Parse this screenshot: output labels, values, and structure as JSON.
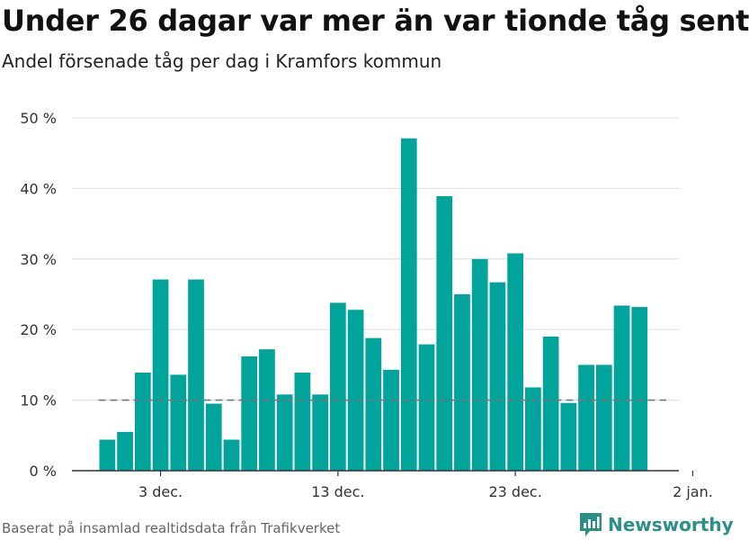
{
  "title": "Under 26 dagar var mer än var tionde tåg sent",
  "subtitle": "Andel försenade tåg per dag i Kramfors kommun",
  "footer": "Baserat på insamlad realtidsdata från Trafikverket",
  "brand": {
    "name": "Newsworthy",
    "icon": "bar-chart-logo-icon"
  },
  "colors": {
    "bar": "#00a49a",
    "reference": "#777777",
    "grid": "#dddddd",
    "brand": "#2a8f86"
  },
  "chart_data": {
    "type": "bar",
    "x": [
      "2019-11-30",
      "2019-12-01",
      "2019-12-02",
      "2019-12-03",
      "2019-12-04",
      "2019-12-05",
      "2019-12-06",
      "2019-12-07",
      "2019-12-08",
      "2019-12-09",
      "2019-12-10",
      "2019-12-11",
      "2019-12-12",
      "2019-12-13",
      "2019-12-14",
      "2019-12-15",
      "2019-12-16",
      "2019-12-17",
      "2019-12-18",
      "2019-12-19",
      "2019-12-20",
      "2019-12-21",
      "2019-12-22",
      "2019-12-23",
      "2019-12-24",
      "2019-12-25",
      "2019-12-26",
      "2019-12-27",
      "2019-12-28",
      "2019-12-29",
      "2019-12-30",
      "2019-12-31"
    ],
    "values": [
      4.4,
      5.5,
      13.9,
      27.1,
      13.6,
      27.1,
      9.5,
      4.4,
      16.2,
      17.2,
      10.8,
      13.9,
      10.8,
      23.8,
      22.8,
      18.8,
      14.3,
      47.1,
      17.9,
      38.9,
      25.0,
      30.0,
      26.7,
      30.8,
      11.8,
      19.0,
      9.6,
      15.0,
      15.0,
      23.4,
      23.2,
      null
    ],
    "reference_line": 10,
    "ylim": [
      0,
      50
    ],
    "yticks": [
      0,
      10,
      20,
      30,
      40,
      50
    ],
    "ytick_labels": [
      "0 %",
      "10 %",
      "20 %",
      "30 %",
      "40 %",
      "50 %"
    ],
    "xticks": [
      "2019-12-03",
      "2019-12-13",
      "2019-12-23",
      "2020-01-02"
    ],
    "xtick_labels": [
      "3 dec.",
      "13 dec.",
      "23 dec.",
      "2 jan."
    ],
    "grid": true
  }
}
